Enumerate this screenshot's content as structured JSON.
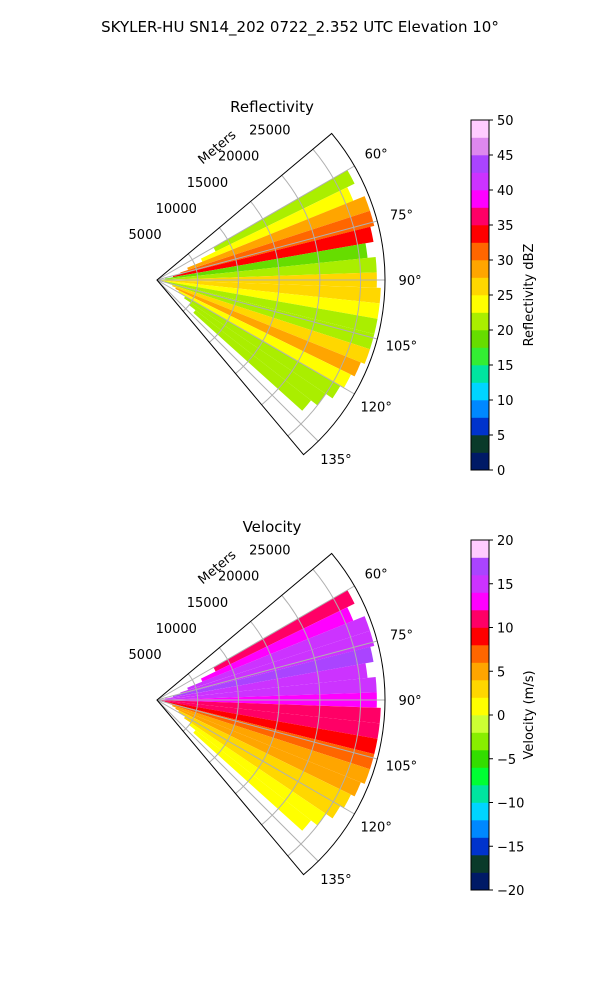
{
  "figure": {
    "suptitle": "SKYLER-HU  SN14_202  0722_2.352 UTC Elevation 10°"
  },
  "chart_data": [
    {
      "type": "heatmap",
      "projection": "polar-sector",
      "title": "Reflectivity",
      "range_label": "Meters",
      "range_ticks": [
        5000,
        10000,
        15000,
        20000,
        25000
      ],
      "range_tick_labels": [
        "5000",
        "10000",
        "15000",
        "20000",
        "25000"
      ],
      "range_max": 28000,
      "azimuth_ticks": [
        60,
        75,
        90,
        105,
        120,
        135
      ],
      "azimuth_tick_labels": [
        "60°",
        "75°",
        "90°",
        "105°",
        "120°",
        "135°"
      ],
      "azimuth_range": [
        50,
        140
      ],
      "grid": true,
      "colorbar": {
        "label": "Reflectivity dBZ",
        "vmin": 0,
        "vmax": 50,
        "ticks": [
          0,
          5,
          10,
          15,
          20,
          25,
          30,
          35,
          40,
          45,
          50
        ],
        "tick_labels": [
          "0",
          "5",
          "10",
          "15",
          "20",
          "25",
          "30",
          "35",
          "40",
          "45",
          "50"
        ],
        "colors": [
          "#001a66",
          "#0a3a2a",
          "#0033cc",
          "#0088ff",
          "#00d5ff",
          "#00e5a0",
          "#33ee33",
          "#66dd00",
          "#aaee00",
          "#ffff00",
          "#ffd700",
          "#ffa500",
          "#ff6600",
          "#ff0000",
          "#ff0066",
          "#ff00ff",
          "#cc33ff",
          "#aa44ff",
          "#dd88ee",
          "#ffccff"
        ]
      },
      "cells": [
        {
          "az": 62,
          "r": [
            8000,
            27000
          ],
          "value": 22
        },
        {
          "az": 66,
          "r": [
            6000,
            26000
          ],
          "value": 24
        },
        {
          "az": 70,
          "r": [
            4000,
            27500
          ],
          "value": 28
        },
        {
          "az": 74,
          "r": [
            3000,
            27500
          ],
          "value": 30
        },
        {
          "az": 78,
          "r": [
            2000,
            27000
          ],
          "value": 33
        },
        {
          "az": 82,
          "r": [
            1000,
            26000
          ],
          "value": 18
        },
        {
          "az": 86,
          "r": [
            500,
            27000
          ],
          "value": 22
        },
        {
          "az": 90,
          "r": [
            500,
            27000
          ],
          "value": 25
        },
        {
          "az": 94,
          "r": [
            500,
            27500
          ],
          "value": 27
        },
        {
          "az": 98,
          "r": [
            500,
            27500
          ],
          "value": 24
        },
        {
          "az": 102,
          "r": [
            1000,
            27500
          ],
          "value": 22
        },
        {
          "az": 106,
          "r": [
            1500,
            27500
          ],
          "value": 20
        },
        {
          "az": 110,
          "r": [
            2000,
            27500
          ],
          "value": 26
        },
        {
          "az": 114,
          "r": [
            2500,
            27000
          ],
          "value": 28
        },
        {
          "az": 118,
          "r": [
            3000,
            26500
          ],
          "value": 23
        },
        {
          "az": 122,
          "r": [
            4000,
            26000
          ],
          "value": 21
        },
        {
          "az": 126,
          "r": [
            5000,
            25000
          ],
          "value": 20
        },
        {
          "az": 130,
          "r": [
            6000,
            24000
          ],
          "value": 22
        }
      ]
    },
    {
      "type": "heatmap",
      "projection": "polar-sector",
      "title": "Velocity",
      "range_label": "Meters",
      "range_ticks": [
        5000,
        10000,
        15000,
        20000,
        25000
      ],
      "range_tick_labels": [
        "5000",
        "10000",
        "15000",
        "20000",
        "25000"
      ],
      "range_max": 28000,
      "azimuth_ticks": [
        60,
        75,
        90,
        105,
        120,
        135
      ],
      "azimuth_tick_labels": [
        "60°",
        "75°",
        "90°",
        "105°",
        "120°",
        "135°"
      ],
      "azimuth_range": [
        50,
        140
      ],
      "grid": true,
      "colorbar": {
        "label": "Velocity (m/s)",
        "vmin": -20,
        "vmax": 20,
        "ticks": [
          -20,
          -15,
          -10,
          -5,
          0,
          5,
          10,
          15,
          20
        ],
        "tick_labels": [
          "−20",
          "−15",
          "−10",
          "−5",
          "0",
          "5",
          "10",
          "15",
          "20"
        ],
        "colors": [
          "#001a66",
          "#0a3a2a",
          "#0033cc",
          "#0088ff",
          "#00d5ff",
          "#00e5a0",
          "#00ff33",
          "#33dd00",
          "#88ee00",
          "#ccff33",
          "#ffff00",
          "#ffd700",
          "#ffa500",
          "#ff6600",
          "#ff0000",
          "#ff0066",
          "#ff00ff",
          "#cc33ff",
          "#aa44ff",
          "#ffccff"
        ]
      },
      "cells": [
        {
          "az": 62,
          "r": [
            8000,
            27000
          ],
          "value": 11
        },
        {
          "az": 66,
          "r": [
            6000,
            26000
          ],
          "value": 12
        },
        {
          "az": 70,
          "r": [
            4000,
            27500
          ],
          "value": 14
        },
        {
          "az": 74,
          "r": [
            3000,
            27500
          ],
          "value": 15
        },
        {
          "az": 78,
          "r": [
            2000,
            27000
          ],
          "value": 16
        },
        {
          "az": 82,
          "r": [
            1000,
            26000
          ],
          "value": 15
        },
        {
          "az": 86,
          "r": [
            500,
            27000
          ],
          "value": 14
        },
        {
          "az": 90,
          "r": [
            500,
            27000
          ],
          "value": 13
        },
        {
          "az": 94,
          "r": [
            500,
            27500
          ],
          "value": 11
        },
        {
          "az": 98,
          "r": [
            500,
            27500
          ],
          "value": 10
        },
        {
          "az": 102,
          "r": [
            1000,
            27500
          ],
          "value": 9
        },
        {
          "az": 106,
          "r": [
            1500,
            27500
          ],
          "value": 7
        },
        {
          "az": 110,
          "r": [
            2000,
            27500
          ],
          "value": 5
        },
        {
          "az": 114,
          "r": [
            2500,
            27000
          ],
          "value": 4
        },
        {
          "az": 118,
          "r": [
            3000,
            26500
          ],
          "value": 3
        },
        {
          "az": 122,
          "r": [
            4000,
            26000
          ],
          "value": 2
        },
        {
          "az": 126,
          "r": [
            5000,
            25000
          ],
          "value": 1
        },
        {
          "az": 130,
          "r": [
            6000,
            24000
          ],
          "value": 0
        }
      ]
    }
  ]
}
